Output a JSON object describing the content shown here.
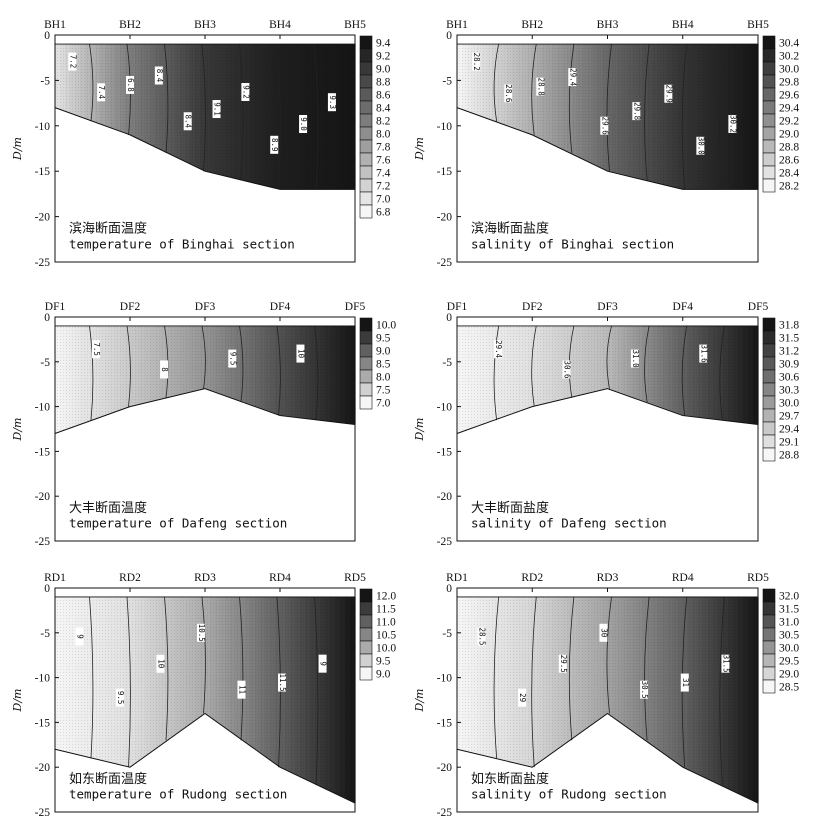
{
  "ylabel": "D/m",
  "y_ticks": [
    "0",
    "-5",
    "-10",
    "-15",
    "-20",
    "-25"
  ],
  "chart_data": [
    {
      "type": "heatmap",
      "section": "Binghai",
      "variable": "temperature",
      "caption_cn": "滨海断面温度",
      "caption_en": "temperature of Binghai section",
      "stations": [
        "BH1",
        "BH2",
        "BH3",
        "BH4",
        "BH5"
      ],
      "ylim": [
        -25,
        0
      ],
      "seafloor_depth": [
        -8,
        -11,
        -15,
        -17,
        -17
      ],
      "surface_values": [
        7.0,
        8.2,
        9.0,
        9.3,
        9.4
      ],
      "colorbar_ticks": [
        "9.4",
        "9.2",
        "9.0",
        "8.8",
        "8.6",
        "8.4",
        "8.2",
        "8.0",
        "7.8",
        "7.6",
        "7.4",
        "7.2",
        "7.0",
        "6.8"
      ],
      "color_range": [
        6.8,
        9.4
      ],
      "contour_labels": [
        "7.2",
        "7.4",
        "6.8",
        "8.4",
        "8.4",
        "9.1",
        "9.2",
        "8.9",
        "9.0",
        "9.3"
      ]
    },
    {
      "type": "heatmap",
      "section": "Binghai",
      "variable": "salinity",
      "caption_cn": "滨海断面盐度",
      "caption_en": "salinity of Binghai section",
      "stations": [
        "BH1",
        "BH2",
        "BH3",
        "BH4",
        "BH5"
      ],
      "ylim": [
        -25,
        0
      ],
      "seafloor_depth": [
        -8,
        -11,
        -15,
        -17,
        -17
      ],
      "surface_values": [
        28.2,
        28.9,
        29.6,
        30.1,
        30.4
      ],
      "colorbar_ticks": [
        "30.4",
        "30.2",
        "30.0",
        "29.8",
        "29.6",
        "29.4",
        "29.2",
        "29.0",
        "28.8",
        "28.6",
        "28.4",
        "28.2"
      ],
      "color_range": [
        28.2,
        30.4
      ],
      "contour_labels": [
        "28.2",
        "28.6",
        "28.8",
        "29.4",
        "29.6",
        "29.8",
        "29.9",
        "30.0",
        "30.2"
      ]
    },
    {
      "type": "heatmap",
      "section": "Dafeng",
      "variable": "temperature",
      "caption_cn": "大丰断面温度",
      "caption_en": "temperature of Dafeng section",
      "stations": [
        "DF1",
        "DF2",
        "DF3",
        "DF4",
        "DF5"
      ],
      "ylim": [
        -25,
        0
      ],
      "seafloor_depth": [
        -13,
        -10,
        -8,
        -11,
        -12
      ],
      "surface_values": [
        7.0,
        7.6,
        8.3,
        9.2,
        10.0
      ],
      "colorbar_ticks": [
        "10.0",
        "9.5",
        "9.0",
        "8.5",
        "8.0",
        "7.5",
        "7.0"
      ],
      "color_range": [
        7.0,
        10.0
      ],
      "contour_labels": [
        "7.5",
        "8",
        "9.5",
        "10"
      ]
    },
    {
      "type": "heatmap",
      "section": "Dafeng",
      "variable": "salinity",
      "caption_cn": "大丰断面盐度",
      "caption_en": "salinity of Dafeng section",
      "stations": [
        "DF1",
        "DF2",
        "DF3",
        "DF4",
        "DF5"
      ],
      "ylim": [
        -25,
        0
      ],
      "seafloor_depth": [
        -13,
        -10,
        -8,
        -11,
        -12
      ],
      "surface_values": [
        28.8,
        29.1,
        29.6,
        30.8,
        31.8
      ],
      "colorbar_ticks": [
        "31.8",
        "31.5",
        "31.2",
        "30.9",
        "30.6",
        "30.3",
        "30.0",
        "29.7",
        "29.4",
        "29.1",
        "28.8"
      ],
      "color_range": [
        28.8,
        31.8
      ],
      "contour_labels": [
        "29.4",
        "30.6",
        "31.0",
        "31.6"
      ]
    },
    {
      "type": "heatmap",
      "section": "Rudong",
      "variable": "temperature",
      "caption_cn": "如东断面温度",
      "caption_en": "temperature of Rudong section",
      "stations": [
        "RD1",
        "RD2",
        "RD3",
        "RD4",
        "RD5"
      ],
      "ylim": [
        -25,
        0
      ],
      "seafloor_depth": [
        -18,
        -20,
        -14,
        -20,
        -24
      ],
      "surface_values": [
        9.0,
        9.3,
        10.0,
        11.0,
        12.0
      ],
      "colorbar_ticks": [
        "12.0",
        "11.5",
        "11.0",
        "10.5",
        "10.0",
        "9.5",
        "9.0"
      ],
      "color_range": [
        9.0,
        12.0
      ],
      "contour_labels": [
        "9",
        "9.5",
        "10",
        "10.5",
        "11",
        "11.5",
        "9"
      ]
    },
    {
      "type": "heatmap",
      "section": "Rudong",
      "variable": "salinity",
      "caption_cn": "如东断面盐度",
      "caption_en": "salinity of Rudong section",
      "stations": [
        "RD1",
        "RD2",
        "RD3",
        "RD4",
        "RD5"
      ],
      "ylim": [
        -25,
        0
      ],
      "seafloor_depth": [
        -18,
        -20,
        -14,
        -20,
        -24
      ],
      "surface_values": [
        28.5,
        29.0,
        29.8,
        30.8,
        32.0
      ],
      "colorbar_ticks": [
        "32.0",
        "31.5",
        "31.0",
        "30.5",
        "30.0",
        "29.5",
        "29.0",
        "28.5"
      ],
      "color_range": [
        28.5,
        32.0
      ],
      "contour_labels": [
        "28.5",
        "29",
        "29.5",
        "30",
        "30.5",
        "31",
        "31.5"
      ]
    }
  ]
}
